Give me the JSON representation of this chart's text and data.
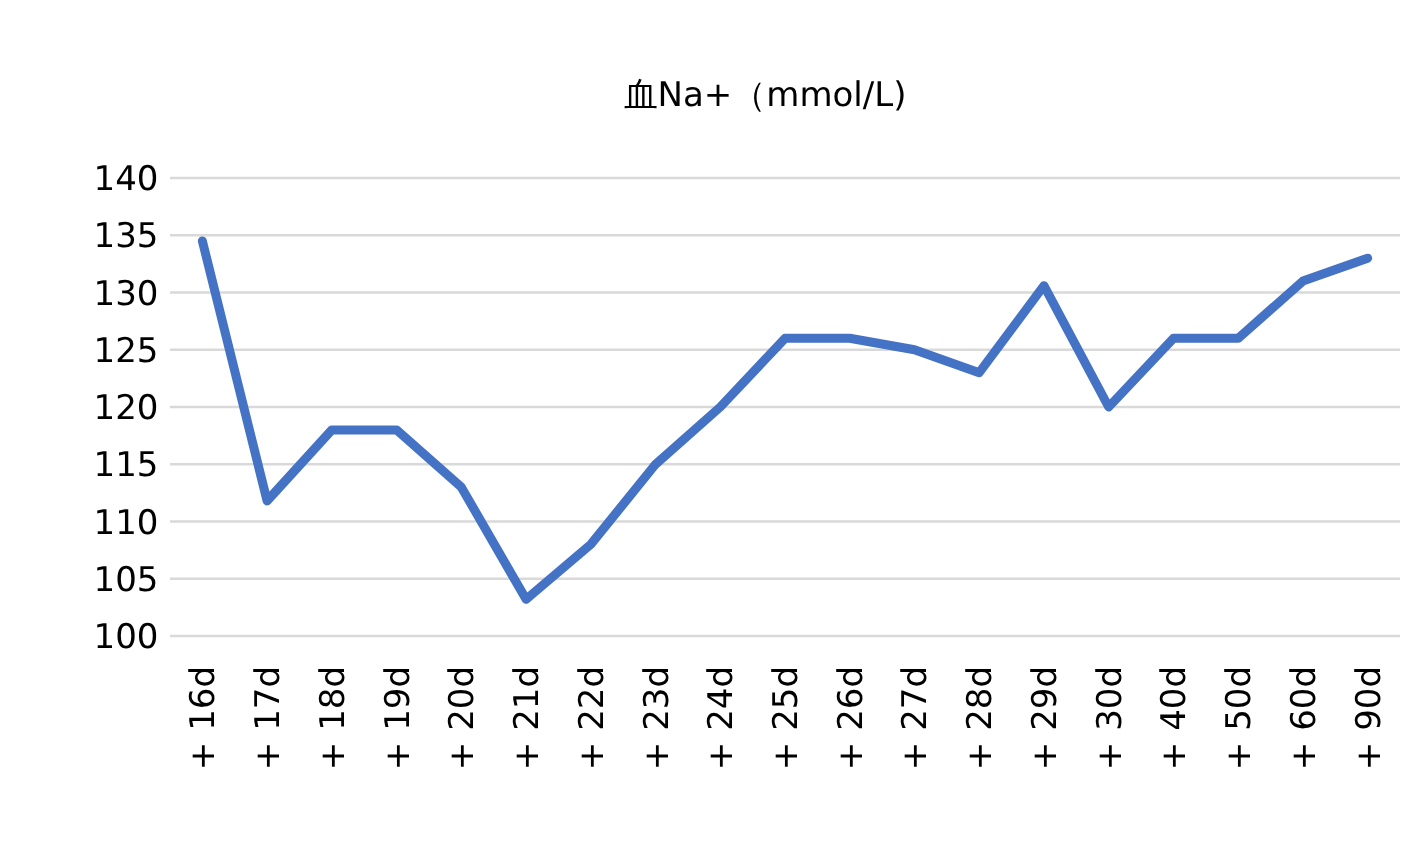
{
  "chart_data": {
    "type": "line",
    "title": "血Na+（mmol/L)",
    "categories": [
      "+ 16d",
      "+ 17d",
      "+ 18d",
      "+ 19d",
      "+ 20d",
      "+ 21d",
      "+ 22d",
      "+ 23d",
      "+ 24d",
      "+ 25d",
      "+ 26d",
      "+ 27d",
      "+ 28d",
      "+ 29d",
      "+ 30d",
      "+ 40d",
      "+ 50d",
      "+ 60d",
      "+ 90d"
    ],
    "values": [
      134.5,
      111.8,
      118,
      118,
      113,
      103.2,
      108,
      115,
      120,
      126,
      126,
      125,
      123,
      130.6,
      120,
      126,
      126,
      131,
      133
    ],
    "color": "#4472c4",
    "ylim": [
      100,
      140
    ],
    "yticks": [
      100,
      105,
      110,
      115,
      120,
      125,
      130,
      135,
      140
    ],
    "grid": "y"
  }
}
